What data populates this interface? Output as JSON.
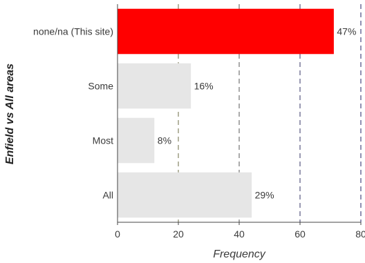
{
  "chart_data": {
    "type": "bar",
    "orientation": "horizontal",
    "categories": [
      "none/na (This site)",
      "Some",
      "Most",
      "All"
    ],
    "values": [
      71,
      24,
      12,
      44
    ],
    "data_labels": [
      "47%",
      "16%",
      "8%",
      "29%"
    ],
    "bar_colors": [
      "#ff0000",
      "#e6e6e6",
      "#e6e6e6",
      "#e6e6e6"
    ],
    "xlabel": "Frequency",
    "ylabel": "Enfield vs All areas",
    "xlim": [
      0,
      80
    ],
    "xticks": [
      0,
      20,
      40,
      60,
      80
    ],
    "grid": "vertical dashed",
    "grid_colors": [
      "#6b6b45",
      "#555555",
      "#333366",
      "#222266"
    ]
  }
}
